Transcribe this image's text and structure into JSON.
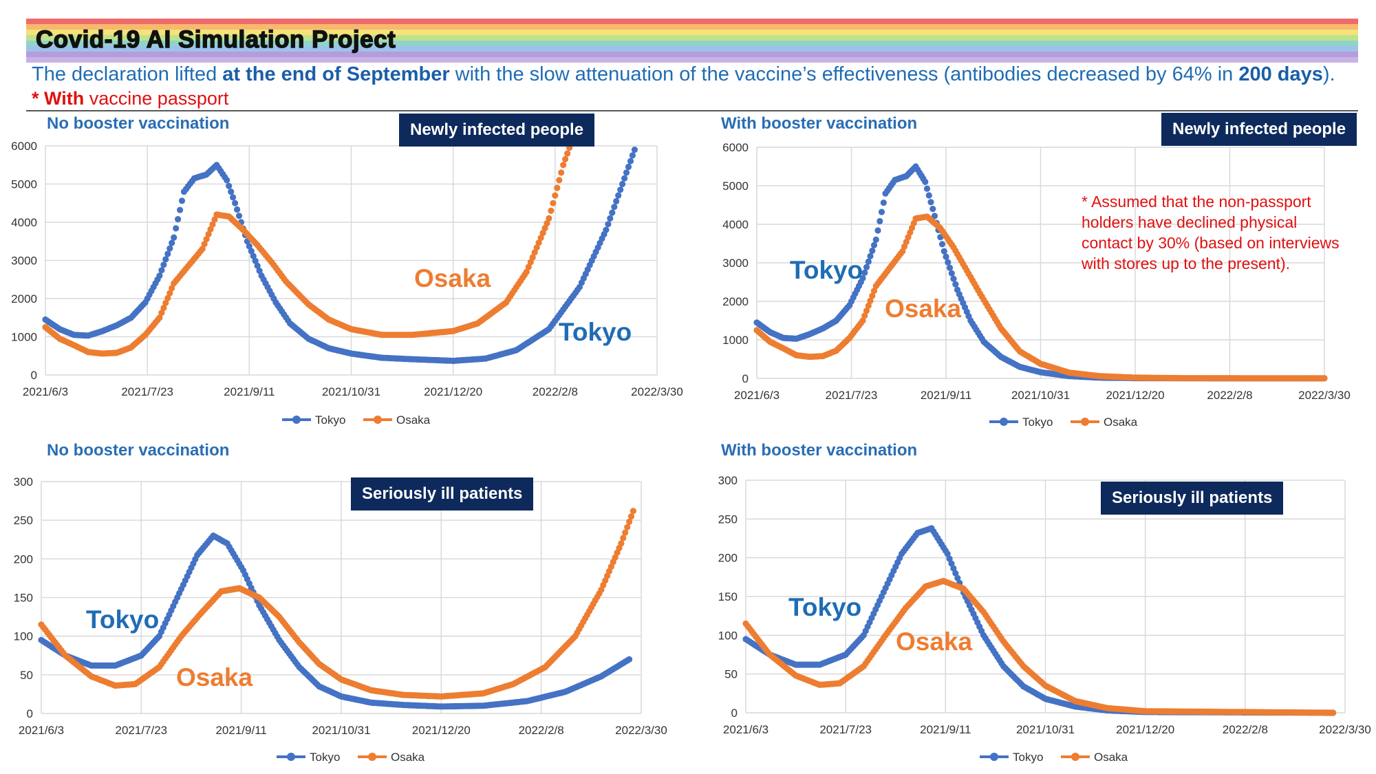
{
  "header": {
    "project_title": "Covid-19 AI Simulation Project",
    "line1_a": "The declaration lifted ",
    "line1_b": "at the end of September",
    "line1_c": " with the slow attenuation of the vaccine’s effectiveness (antibodies decreased by 64% in ",
    "line1_d": "200 days",
    "line1_e": ").",
    "line2_a": "* With",
    "line2_b": " vaccine passport",
    "rainbow_colors": [
      "#ef6a6a",
      "#f7b96b",
      "#f5e27a",
      "#bfe28a",
      "#8fd4c9",
      "#9ec1ea",
      "#b39ddb",
      "#c9b3e6"
    ]
  },
  "colors": {
    "tokyo": "#4472c4",
    "osaka": "#ed7d31",
    "tag_bg": "#0e2a5c",
    "grid": "#d9d9d9"
  },
  "note": "* Assumed that the non-passport holders have declined physical contact by 30% (based on interviews with stores up to the present).",
  "panels": [
    {
      "id": "tl",
      "subtitle": "No booster vaccination",
      "tag": "Newly infected people",
      "label_tokyo": "Tokyo",
      "label_osaka": "Osaka"
    },
    {
      "id": "tr",
      "subtitle": "With booster vaccination",
      "tag": "Newly infected people",
      "label_tokyo": "Tokyo",
      "label_osaka": "Osaka"
    },
    {
      "id": "bl",
      "subtitle": "No booster vaccination",
      "tag": "Seriously ill patients",
      "label_tokyo": "Tokyo",
      "label_osaka": "Osaka"
    },
    {
      "id": "br",
      "subtitle": "With booster vaccination",
      "tag": "Seriously ill patients",
      "label_tokyo": "Tokyo",
      "label_osaka": "Osaka"
    }
  ],
  "chart_data": [
    {
      "type": "line",
      "title": "Newly infected people",
      "subtitle": "No booster vaccination",
      "x_ticks": [
        "2021/6/3",
        "2021/7/23",
        "2021/9/11",
        "2021/10/31",
        "2021/12/20",
        "2022/2/8",
        "2022/3/30"
      ],
      "ylim": [
        0,
        6000
      ],
      "y_ticks": [
        0,
        1000,
        2000,
        3000,
        4000,
        5000,
        6000
      ],
      "legend": "bottom",
      "series": [
        {
          "name": "Tokyo",
          "points": [
            [
              "2021-06-03",
              1450
            ],
            [
              "2021-06-10",
              1200
            ],
            [
              "2021-06-17",
              1050
            ],
            [
              "2021-06-24",
              1030
            ],
            [
              "2021-07-01",
              1150
            ],
            [
              "2021-07-08",
              1300
            ],
            [
              "2021-07-15",
              1500
            ],
            [
              "2021-07-22",
              1900
            ],
            [
              "2021-07-29",
              2600
            ],
            [
              "2021-08-05",
              3600
            ],
            [
              "2021-08-10",
              4800
            ],
            [
              "2021-08-15",
              5150
            ],
            [
              "2021-08-21",
              5250
            ],
            [
              "2021-08-26",
              5500
            ],
            [
              "2021-08-31",
              5100
            ],
            [
              "2021-09-04",
              4500
            ],
            [
              "2021-09-10",
              3500
            ],
            [
              "2021-09-17",
              2600
            ],
            [
              "2021-09-24",
              1900
            ],
            [
              "2021-10-01",
              1350
            ],
            [
              "2021-10-10",
              950
            ],
            [
              "2021-10-20",
              700
            ],
            [
              "2021-10-31",
              560
            ],
            [
              "2021-11-15",
              450
            ],
            [
              "2021-12-01",
              410
            ],
            [
              "2021-12-20",
              370
            ],
            [
              "2022-01-05",
              430
            ],
            [
              "2022-01-20",
              650
            ],
            [
              "2022-02-05",
              1200
            ],
            [
              "2022-02-20",
              2300
            ],
            [
              "2022-03-05",
              3800
            ],
            [
              "2022-03-19",
              5900
            ]
          ]
        },
        {
          "name": "Osaka",
          "points": [
            [
              "2021-06-03",
              1250
            ],
            [
              "2021-06-10",
              950
            ],
            [
              "2021-06-17",
              780
            ],
            [
              "2021-06-24",
              600
            ],
            [
              "2021-07-01",
              560
            ],
            [
              "2021-07-08",
              580
            ],
            [
              "2021-07-15",
              720
            ],
            [
              "2021-07-22",
              1050
            ],
            [
              "2021-07-29",
              1500
            ],
            [
              "2021-08-05",
              2400
            ],
            [
              "2021-08-12",
              2850
            ],
            [
              "2021-08-19",
              3300
            ],
            [
              "2021-08-26",
              4200
            ],
            [
              "2021-09-01",
              4150
            ],
            [
              "2021-09-08",
              3800
            ],
            [
              "2021-09-15",
              3400
            ],
            [
              "2021-09-22",
              2950
            ],
            [
              "2021-09-29",
              2450
            ],
            [
              "2021-10-10",
              1850
            ],
            [
              "2021-10-20",
              1450
            ],
            [
              "2021-10-31",
              1200
            ],
            [
              "2021-11-15",
              1050
            ],
            [
              "2021-11-30",
              1050
            ],
            [
              "2021-12-10",
              1100
            ],
            [
              "2021-12-20",
              1150
            ],
            [
              "2022-01-01",
              1350
            ],
            [
              "2022-01-15",
              1900
            ],
            [
              "2022-01-25",
              2700
            ],
            [
              "2022-02-05",
              4100
            ],
            [
              "2022-02-12",
              5500
            ],
            [
              "2022-02-15",
              5950
            ]
          ]
        }
      ]
    },
    {
      "type": "line",
      "title": "Newly infected people",
      "subtitle": "With booster vaccination",
      "x_ticks": [
        "2021/6/3",
        "2021/7/23",
        "2021/9/11",
        "2021/10/31",
        "2021/12/20",
        "2022/2/8",
        "2022/3/30"
      ],
      "ylim": [
        0,
        6000
      ],
      "y_ticks": [
        0,
        1000,
        2000,
        3000,
        4000,
        5000,
        6000
      ],
      "legend": "bottom",
      "series": [
        {
          "name": "Tokyo",
          "points": [
            [
              "2021-06-03",
              1450
            ],
            [
              "2021-06-10",
              1200
            ],
            [
              "2021-06-17",
              1050
            ],
            [
              "2021-06-24",
              1030
            ],
            [
              "2021-07-01",
              1150
            ],
            [
              "2021-07-08",
              1300
            ],
            [
              "2021-07-15",
              1500
            ],
            [
              "2021-07-22",
              1900
            ],
            [
              "2021-07-29",
              2600
            ],
            [
              "2021-08-05",
              3600
            ],
            [
              "2021-08-10",
              4800
            ],
            [
              "2021-08-15",
              5150
            ],
            [
              "2021-08-21",
              5250
            ],
            [
              "2021-08-26",
              5500
            ],
            [
              "2021-08-31",
              5100
            ],
            [
              "2021-09-04",
              4400
            ],
            [
              "2021-09-10",
              3300
            ],
            [
              "2021-09-17",
              2300
            ],
            [
              "2021-09-24",
              1500
            ],
            [
              "2021-10-01",
              950
            ],
            [
              "2021-10-10",
              560
            ],
            [
              "2021-10-20",
              300
            ],
            [
              "2021-10-31",
              160
            ],
            [
              "2021-11-15",
              60
            ],
            [
              "2021-12-01",
              20
            ],
            [
              "2021-12-20",
              8
            ],
            [
              "2022-01-15",
              3
            ],
            [
              "2022-03-30",
              1
            ]
          ]
        },
        {
          "name": "Osaka",
          "points": [
            [
              "2021-06-03",
              1250
            ],
            [
              "2021-06-10",
              950
            ],
            [
              "2021-06-17",
              780
            ],
            [
              "2021-06-24",
              600
            ],
            [
              "2021-07-01",
              560
            ],
            [
              "2021-07-08",
              580
            ],
            [
              "2021-07-15",
              720
            ],
            [
              "2021-07-22",
              1050
            ],
            [
              "2021-07-29",
              1500
            ],
            [
              "2021-08-05",
              2400
            ],
            [
              "2021-08-12",
              2850
            ],
            [
              "2021-08-19",
              3300
            ],
            [
              "2021-08-26",
              4150
            ],
            [
              "2021-09-01",
              4200
            ],
            [
              "2021-09-08",
              3900
            ],
            [
              "2021-09-15",
              3400
            ],
            [
              "2021-09-22",
              2800
            ],
            [
              "2021-09-29",
              2200
            ],
            [
              "2021-10-10",
              1300
            ],
            [
              "2021-10-20",
              700
            ],
            [
              "2021-10-31",
              380
            ],
            [
              "2021-11-15",
              150
            ],
            [
              "2021-12-01",
              60
            ],
            [
              "2021-12-20",
              20
            ],
            [
              "2022-01-15",
              6
            ],
            [
              "2022-03-30",
              2
            ]
          ]
        }
      ]
    },
    {
      "type": "line",
      "title": "Seriously ill patients",
      "subtitle": "No booster vaccination",
      "x_ticks": [
        "2021/6/3",
        "2021/7/23",
        "2021/9/11",
        "2021/10/31",
        "2021/12/20",
        "2022/2/8",
        "2022/3/30"
      ],
      "ylim": [
        0,
        300
      ],
      "y_ticks": [
        0,
        50,
        100,
        150,
        200,
        250,
        300
      ],
      "legend": "bottom",
      "series": [
        {
          "name": "Tokyo",
          "points": [
            [
              "2021-06-03",
              95
            ],
            [
              "2021-06-15",
              75
            ],
            [
              "2021-06-28",
              62
            ],
            [
              "2021-07-10",
              62
            ],
            [
              "2021-07-23",
              75
            ],
            [
              "2021-08-01",
              100
            ],
            [
              "2021-08-10",
              150
            ],
            [
              "2021-08-20",
              205
            ],
            [
              "2021-08-28",
              230
            ],
            [
              "2021-09-04",
              220
            ],
            [
              "2021-09-12",
              185
            ],
            [
              "2021-09-20",
              140
            ],
            [
              "2021-09-30",
              95
            ],
            [
              "2021-10-10",
              60
            ],
            [
              "2021-10-20",
              35
            ],
            [
              "2021-10-31",
              22
            ],
            [
              "2021-11-15",
              14
            ],
            [
              "2021-12-01",
              11
            ],
            [
              "2021-12-20",
              9
            ],
            [
              "2022-01-10",
              10
            ],
            [
              "2022-02-01",
              16
            ],
            [
              "2022-02-20",
              28
            ],
            [
              "2022-03-10",
              48
            ],
            [
              "2022-03-24",
              70
            ]
          ]
        },
        {
          "name": "Osaka",
          "points": [
            [
              "2021-06-03",
              115
            ],
            [
              "2021-06-15",
              75
            ],
            [
              "2021-06-28",
              48
            ],
            [
              "2021-07-10",
              36
            ],
            [
              "2021-07-20",
              38
            ],
            [
              "2021-08-01",
              60
            ],
            [
              "2021-08-12",
              100
            ],
            [
              "2021-08-22",
              130
            ],
            [
              "2021-09-01",
              158
            ],
            [
              "2021-09-10",
              162
            ],
            [
              "2021-09-20",
              150
            ],
            [
              "2021-09-30",
              125
            ],
            [
              "2021-10-10",
              92
            ],
            [
              "2021-10-20",
              64
            ],
            [
              "2021-10-31",
              44
            ],
            [
              "2021-11-15",
              30
            ],
            [
              "2021-12-01",
              24
            ],
            [
              "2021-12-20",
              22
            ],
            [
              "2022-01-10",
              26
            ],
            [
              "2022-01-25",
              38
            ],
            [
              "2022-02-10",
              60
            ],
            [
              "2022-02-25",
              100
            ],
            [
              "2022-03-10",
              160
            ],
            [
              "2022-03-20",
              220
            ],
            [
              "2022-03-26",
              262
            ]
          ]
        }
      ]
    },
    {
      "type": "line",
      "title": "Seriously ill patients",
      "subtitle": "With booster vaccination",
      "x_ticks": [
        "2021/6/3",
        "2021/7/23",
        "2021/9/11",
        "2021/10/31",
        "2021/12/20",
        "2022/2/8",
        "2022/3/30"
      ],
      "ylim": [
        0,
        300
      ],
      "y_ticks": [
        0,
        50,
        100,
        150,
        200,
        250,
        300
      ],
      "legend": "bottom",
      "series": [
        {
          "name": "Tokyo",
          "points": [
            [
              "2021-06-03",
              95
            ],
            [
              "2021-06-15",
              75
            ],
            [
              "2021-06-28",
              62
            ],
            [
              "2021-07-10",
              62
            ],
            [
              "2021-07-23",
              75
            ],
            [
              "2021-08-01",
              100
            ],
            [
              "2021-08-10",
              150
            ],
            [
              "2021-08-20",
              205
            ],
            [
              "2021-08-28",
              232
            ],
            [
              "2021-09-04",
              238
            ],
            [
              "2021-09-12",
              205
            ],
            [
              "2021-09-20",
              155
            ],
            [
              "2021-09-30",
              100
            ],
            [
              "2021-10-10",
              60
            ],
            [
              "2021-10-20",
              34
            ],
            [
              "2021-10-31",
              18
            ],
            [
              "2021-11-15",
              8
            ],
            [
              "2021-12-01",
              3
            ],
            [
              "2021-12-20",
              1
            ],
            [
              "2022-03-24",
              0
            ]
          ]
        },
        {
          "name": "Osaka",
          "points": [
            [
              "2021-06-03",
              115
            ],
            [
              "2021-06-15",
              75
            ],
            [
              "2021-06-28",
              48
            ],
            [
              "2021-07-10",
              36
            ],
            [
              "2021-07-20",
              38
            ],
            [
              "2021-08-01",
              60
            ],
            [
              "2021-08-12",
              100
            ],
            [
              "2021-08-22",
              135
            ],
            [
              "2021-09-01",
              163
            ],
            [
              "2021-09-10",
              170
            ],
            [
              "2021-09-20",
              160
            ],
            [
              "2021-09-30",
              130
            ],
            [
              "2021-10-10",
              92
            ],
            [
              "2021-10-20",
              60
            ],
            [
              "2021-10-31",
              35
            ],
            [
              "2021-11-15",
              15
            ],
            [
              "2021-12-01",
              6
            ],
            [
              "2021-12-20",
              2
            ],
            [
              "2022-03-24",
              0
            ]
          ]
        }
      ]
    }
  ]
}
